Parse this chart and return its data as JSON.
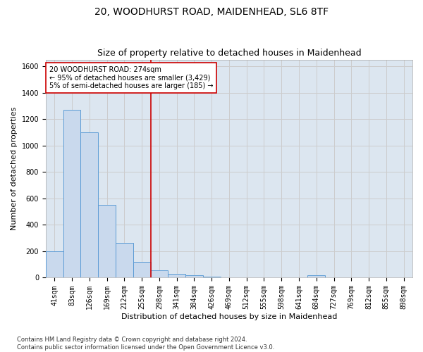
{
  "title": "20, WOODHURST ROAD, MAIDENHEAD, SL6 8TF",
  "subtitle": "Size of property relative to detached houses in Maidenhead",
  "xlabel": "Distribution of detached houses by size in Maidenhead",
  "ylabel": "Number of detached properties",
  "footnote": "Contains HM Land Registry data © Crown copyright and database right 2024.\nContains public sector information licensed under the Open Government Licence v3.0.",
  "categories": [
    "41sqm",
    "83sqm",
    "126sqm",
    "169sqm",
    "212sqm",
    "255sqm",
    "298sqm",
    "341sqm",
    "384sqm",
    "426sqm",
    "469sqm",
    "512sqm",
    "555sqm",
    "598sqm",
    "641sqm",
    "684sqm",
    "727sqm",
    "769sqm",
    "812sqm",
    "855sqm",
    "898sqm"
  ],
  "values": [
    198,
    1270,
    1100,
    550,
    265,
    120,
    55,
    30,
    18,
    10,
    5,
    4,
    3,
    2,
    0,
    18,
    0,
    0,
    0,
    0,
    0
  ],
  "bar_color": "#c9d9ed",
  "bar_edge_color": "#5b9bd5",
  "vline_x": 5.5,
  "vline_color": "#cc0000",
  "annotation_box_text": "20 WOODHURST ROAD: 274sqm\n← 95% of detached houses are smaller (3,429)\n5% of semi-detached houses are larger (185) →",
  "annotation_box_color": "#cc0000",
  "ylim": [
    0,
    1650
  ],
  "yticks": [
    0,
    200,
    400,
    600,
    800,
    1000,
    1200,
    1400,
    1600
  ],
  "grid_color": "#cccccc",
  "plot_bg_color": "#dce6f0",
  "fig_bg_color": "#ffffff",
  "title_fontsize": 10,
  "subtitle_fontsize": 9,
  "axis_label_fontsize": 8,
  "tick_fontsize": 7,
  "footnote_fontsize": 6
}
